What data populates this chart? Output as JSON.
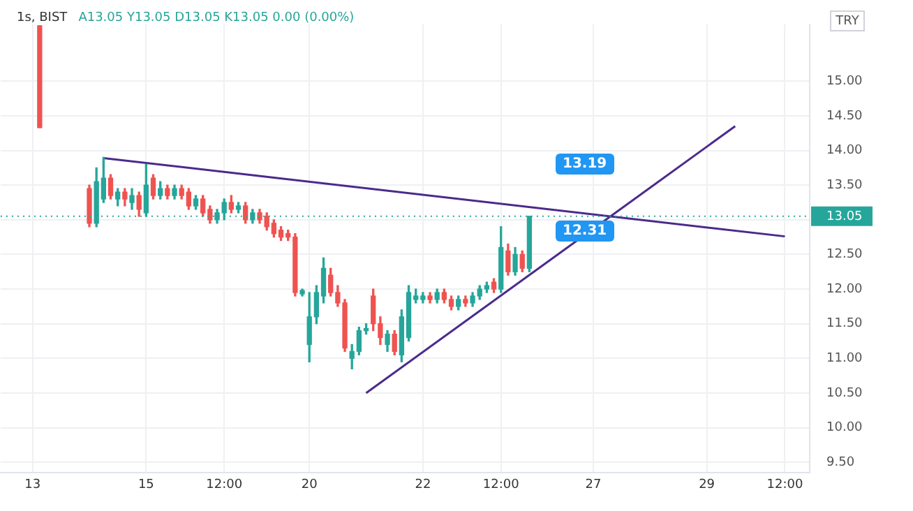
{
  "chart_data": {
    "type": "candlestick",
    "title": "1s, BIST",
    "subtitle": "A13.05 Y13.05 D13.05 K13.05 0.00 (0.00%)",
    "ylabel": "TRY",
    "categories": [
      null,
      null,
      null,
      null,
      "13",
      null,
      null,
      null,
      null,
      null,
      null,
      null,
      null,
      null,
      null,
      null,
      null,
      null,
      null,
      null,
      "15",
      null,
      null,
      null,
      null,
      null,
      null,
      null,
      null,
      null,
      null,
      "12:00",
      null,
      null,
      null,
      null,
      null,
      null,
      null,
      null,
      null,
      null,
      null,
      "20",
      null,
      null,
      null,
      null,
      null,
      null,
      null,
      null,
      null,
      null,
      null,
      null,
      null,
      null,
      null,
      "22",
      null,
      null,
      null,
      null,
      null,
      null,
      null,
      null,
      null,
      null,
      "12:00",
      null,
      null,
      null,
      null,
      null,
      null,
      null,
      null,
      null,
      null,
      null,
      null,
      "27",
      null,
      null,
      null,
      null,
      null,
      null,
      null,
      null,
      null,
      null,
      null,
      null,
      null,
      null,
      null,
      "29",
      null,
      null,
      null,
      null,
      null,
      null,
      null,
      null,
      null,
      null,
      "12:00",
      null,
      null,
      null
    ],
    "ylim": [
      9.35,
      15.82
    ],
    "yticks": [
      {
        "value": 9.5,
        "label": "9.50"
      },
      {
        "value": 10,
        "label": "10.00"
      },
      {
        "value": 10.5,
        "label": "10.50"
      },
      {
        "value": 11,
        "label": "11.00"
      },
      {
        "value": 11.5,
        "label": "11.50"
      },
      {
        "value": 12,
        "label": "12.00"
      },
      {
        "value": 12.5,
        "label": "12.50"
      },
      {
        "value": 13,
        "label": null
      },
      {
        "value": 13.5,
        "label": "13.50"
      },
      {
        "value": 14,
        "label": "14.00"
      },
      {
        "value": 14.5,
        "label": "14.50"
      },
      {
        "value": 15,
        "label": "15.00"
      }
    ],
    "grid": true,
    "legend": false,
    "marker": "none",
    "ref_lines": [
      {
        "axis": "y",
        "value": 13.05,
        "label": "13.05",
        "color": "#26a69a",
        "line_style": "dotted"
      }
    ],
    "annotations": [
      "13.19",
      "12.31"
    ],
    "series": [
      {
        "ohlc": [
          null,
          null,
          null,
          null,
          null,
          [
            15.8,
            15.8,
            14.33,
            14.33
          ],
          null,
          null,
          null,
          null,
          null,
          null,
          [
            13.45,
            13.5,
            12.9,
            12.95
          ],
          [
            12.95,
            13.75,
            12.9,
            13.55
          ],
          [
            13.3,
            13.9,
            13.25,
            13.6
          ],
          [
            13.6,
            13.65,
            13.3,
            13.35
          ],
          [
            13.3,
            13.45,
            13.2,
            13.4
          ],
          [
            13.4,
            13.45,
            13.2,
            13.3
          ],
          [
            13.25,
            13.45,
            13.15,
            13.35
          ],
          [
            13.35,
            13.4,
            13.05,
            13.15
          ],
          [
            13.1,
            13.8,
            13.05,
            13.5
          ],
          [
            13.6,
            13.65,
            13.3,
            13.35
          ],
          [
            13.35,
            13.55,
            13.3,
            13.45
          ],
          [
            13.45,
            13.5,
            13.3,
            13.35
          ],
          [
            13.35,
            13.5,
            13.3,
            13.45
          ],
          [
            13.45,
            13.5,
            13.3,
            13.35
          ],
          [
            13.4,
            13.45,
            13.15,
            13.2
          ],
          [
            13.2,
            13.35,
            13.15,
            13.3
          ],
          [
            13.3,
            13.35,
            13.05,
            13.1
          ],
          [
            13.15,
            13.2,
            12.95,
            13.0
          ],
          [
            13.0,
            13.15,
            12.95,
            13.1
          ],
          [
            13.1,
            13.3,
            13.0,
            13.25
          ],
          [
            13.25,
            13.35,
            13.1,
            13.15
          ],
          [
            13.15,
            13.25,
            13.1,
            13.2
          ],
          [
            13.2,
            13.25,
            12.95,
            13.0
          ],
          [
            13.0,
            13.15,
            12.95,
            13.1
          ],
          [
            13.1,
            13.15,
            12.95,
            13.0
          ],
          [
            13.05,
            13.1,
            12.85,
            12.9
          ],
          [
            12.95,
            13.0,
            12.75,
            12.8
          ],
          [
            12.85,
            12.9,
            12.7,
            12.75
          ],
          [
            12.8,
            12.85,
            12.7,
            12.75
          ],
          [
            12.75,
            12.8,
            11.9,
            11.95
          ],
          [
            11.93,
            12.0,
            11.9,
            11.98
          ],
          [
            11.2,
            11.95,
            10.95,
            11.6
          ],
          [
            11.6,
            12.05,
            11.5,
            11.95
          ],
          [
            11.9,
            12.45,
            11.8,
            12.3
          ],
          [
            12.2,
            12.3,
            11.9,
            11.95
          ],
          [
            11.95,
            12.05,
            11.75,
            11.8
          ],
          [
            11.8,
            11.85,
            11.1,
            11.15
          ],
          [
            11.0,
            11.2,
            10.85,
            11.1
          ],
          [
            11.1,
            11.45,
            11.05,
            11.4
          ],
          [
            11.4,
            11.5,
            11.35,
            11.43
          ],
          [
            11.9,
            12.0,
            11.4,
            11.5
          ],
          [
            11.5,
            11.6,
            11.2,
            11.3
          ],
          [
            11.2,
            11.4,
            11.1,
            11.35
          ],
          [
            11.35,
            11.4,
            11.05,
            11.1
          ],
          [
            11.05,
            11.7,
            10.95,
            11.6
          ],
          [
            11.3,
            12.05,
            11.25,
            11.95
          ],
          [
            11.85,
            12.0,
            11.8,
            11.9
          ],
          [
            11.85,
            11.95,
            11.8,
            11.9
          ],
          [
            11.9,
            11.95,
            11.8,
            11.85
          ],
          [
            11.85,
            12.0,
            11.8,
            11.95
          ],
          [
            11.95,
            12.0,
            11.8,
            11.85
          ],
          [
            11.85,
            11.9,
            11.7,
            11.75
          ],
          [
            11.75,
            11.9,
            11.7,
            11.85
          ],
          [
            11.85,
            11.9,
            11.75,
            11.8
          ],
          [
            11.8,
            11.95,
            11.75,
            11.9
          ],
          [
            11.9,
            12.05,
            11.85,
            12.0
          ],
          [
            12.0,
            12.1,
            11.95,
            12.05
          ],
          [
            12.1,
            12.15,
            11.95,
            12.0
          ],
          [
            12.0,
            12.9,
            11.95,
            12.6
          ],
          [
            12.55,
            12.65,
            12.2,
            12.25
          ],
          [
            12.25,
            12.6,
            12.2,
            12.5
          ],
          [
            12.5,
            12.55,
            12.25,
            12.3
          ],
          [
            12.3,
            13.05,
            12.25,
            13.05
          ],
          null,
          null,
          null,
          null,
          null,
          null,
          null,
          null,
          null,
          null,
          null,
          null,
          null,
          null,
          null,
          null,
          null,
          null,
          null,
          null,
          null,
          null,
          null,
          null,
          null,
          null,
          null,
          null,
          null,
          null,
          null,
          null,
          null,
          null,
          null,
          null,
          null,
          null,
          null
        ],
        "colors": [
          null,
          null,
          null,
          null,
          null,
          "#ef5350",
          null,
          null,
          null,
          null,
          null,
          null,
          "#ef5350",
          "#26a69a",
          "#26a69a",
          "#ef5350",
          "#26a69a",
          "#ef5350",
          "#26a69a",
          "#ef5350",
          "#26a69a",
          "#ef5350",
          "#26a69a",
          "#ef5350",
          "#26a69a",
          "#ef5350",
          "#ef5350",
          "#26a69a",
          "#ef5350",
          "#ef5350",
          "#26a69a",
          "#26a69a",
          "#ef5350",
          "#26a69a",
          "#ef5350",
          "#26a69a",
          "#ef5350",
          "#ef5350",
          "#ef5350",
          "#ef5350",
          "#ef5350",
          "#ef5350",
          "#26a69a",
          "#26a69a",
          "#26a69a",
          "#26a69a",
          "#ef5350",
          "#ef5350",
          "#ef5350",
          "#26a69a",
          "#26a69a",
          "#26a69a",
          "#ef5350",
          "#ef5350",
          "#26a69a",
          "#ef5350",
          "#26a69a",
          "#26a69a",
          "#26a69a",
          "#26a69a",
          "#ef5350",
          "#26a69a",
          "#ef5350",
          "#ef5350",
          "#26a69a",
          "#ef5350",
          "#26a69a",
          "#26a69a",
          "#26a69a",
          "#ef5350",
          "#26a69a",
          "#ef5350",
          "#26a69a",
          "#ef5350",
          "#26a69a",
          null,
          null,
          null,
          null,
          null,
          null,
          null,
          null,
          null,
          null,
          null,
          null,
          null,
          null,
          null,
          null,
          null,
          null,
          null,
          null,
          null,
          null,
          null,
          null,
          null,
          null,
          null,
          null,
          null,
          null,
          null,
          null,
          null,
          null,
          null,
          null,
          null,
          null,
          null
        ]
      },
      {
        "type": "line",
        "color": "#4b2a8c",
        "values": [
          null,
          null,
          null,
          null,
          null,
          null,
          null,
          null,
          null,
          null,
          null,
          null,
          null,
          null,
          13.89,
          null,
          null,
          null,
          null,
          null,
          null,
          null,
          null,
          null,
          null,
          null,
          null,
          null,
          null,
          null,
          null,
          null,
          null,
          null,
          null,
          null,
          null,
          null,
          null,
          null,
          null,
          null,
          null,
          null,
          null,
          null,
          null,
          null,
          null,
          null,
          null,
          null,
          null,
          null,
          null,
          null,
          null,
          null,
          null,
          null,
          null,
          null,
          null,
          null,
          null,
          null,
          null,
          null,
          null,
          null,
          null,
          null,
          null,
          null,
          null,
          null,
          null,
          null,
          null,
          null,
          null,
          null,
          null,
          null,
          null,
          null,
          null,
          null,
          null,
          null,
          null,
          null,
          null,
          null,
          null,
          null,
          null,
          null,
          null,
          null,
          null,
          null,
          null,
          null,
          null,
          null,
          null,
          null,
          null,
          null,
          12.76,
          null,
          null,
          null
        ]
      },
      {
        "type": "line",
        "color": "#4b2a8c",
        "values": [
          null,
          null,
          null,
          null,
          null,
          null,
          null,
          null,
          null,
          null,
          null,
          null,
          null,
          null,
          null,
          null,
          null,
          null,
          null,
          null,
          null,
          null,
          null,
          null,
          null,
          null,
          null,
          null,
          null,
          null,
          null,
          null,
          null,
          null,
          null,
          null,
          null,
          null,
          null,
          null,
          null,
          null,
          null,
          null,
          null,
          null,
          null,
          null,
          null,
          null,
          null,
          10.5,
          null,
          null,
          null,
          null,
          null,
          null,
          null,
          null,
          null,
          null,
          null,
          null,
          null,
          null,
          null,
          null,
          null,
          null,
          null,
          null,
          null,
          null,
          null,
          null,
          null,
          null,
          null,
          null,
          null,
          null,
          null,
          null,
          null,
          null,
          null,
          null,
          null,
          null,
          null,
          null,
          null,
          null,
          null,
          null,
          null,
          null,
          null,
          null,
          null,
          null,
          null,
          14.35,
          null,
          null,
          null,
          null,
          null,
          null,
          null,
          null,
          null,
          null
        ]
      }
    ]
  }
}
